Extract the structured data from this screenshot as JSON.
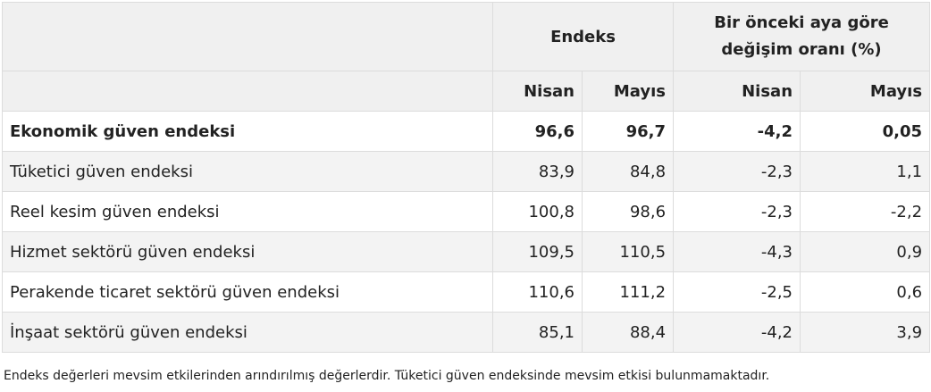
{
  "table": {
    "header": {
      "group1": "Endeks",
      "group2": [
        "Bir önceki aya göre",
        "değişim oranı (%)"
      ],
      "columns": [
        "Nisan",
        "Mayıs",
        "Nisan",
        "Mayıs"
      ]
    },
    "rows": [
      [
        "Ekonomik güven endeksi",
        "96,6",
        "96,7",
        "-4,2",
        "0,05"
      ],
      [
        "Tüketici güven endeksi",
        "83,9",
        "84,8",
        "-2,3",
        "1,1"
      ],
      [
        "Reel kesim güven endeksi",
        "100,8",
        "98,6",
        "-2,3",
        "-2,2"
      ],
      [
        "Hizmet sektörü güven endeksi",
        "109,5",
        "110,5",
        "-4,3",
        "0,9"
      ],
      [
        "Perakende ticaret sektörü güven endeksi",
        "110,6",
        "111,2",
        "-2,5",
        "0,6"
      ],
      [
        "İnşaat sektörü güven endeksi",
        "85,1",
        "88,4",
        "-4,2",
        "3,9"
      ]
    ]
  },
  "footnote": "Endeks değerleri mevsim etkilerinden arındırılmış değerlerdir. Tüketici güven endeksinde mevsim etkisi bulunmamaktadır."
}
